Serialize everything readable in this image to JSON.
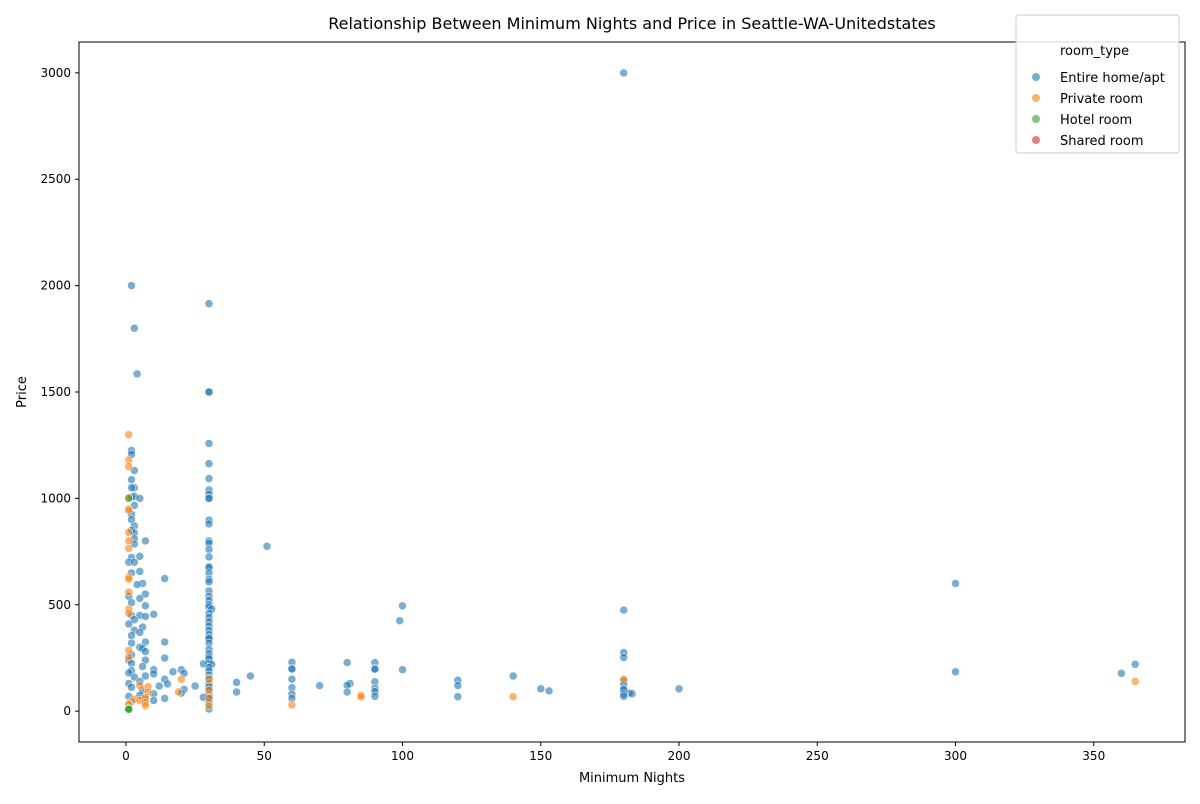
{
  "chart_data": {
    "type": "scatter",
    "title": "Relationship Between Minimum Nights and Price in Seattle-WA-Unitedstates",
    "xlabel": "Minimum Nights",
    "ylabel": "Price",
    "xlim": [
      -17,
      383
    ],
    "ylim": [
      -145,
      3145
    ],
    "x_ticks": [
      0,
      50,
      100,
      150,
      200,
      250,
      300,
      350
    ],
    "y_ticks": [
      0,
      500,
      1000,
      1500,
      2000,
      2500,
      3000
    ],
    "grid": false,
    "legend": {
      "title": "room_type",
      "placement": "top-right",
      "entries": [
        "Entire home/apt",
        "Private room",
        "Hotel room",
        "Shared room"
      ]
    },
    "colors": {
      "Entire home/apt": "#1f77b4",
      "Private room": "#ff7f0e",
      "Hotel room": "#2ca02c",
      "Shared room": "#d62728"
    },
    "series": [
      {
        "name": "Entire home/apt",
        "points": [
          [
            180,
            3000
          ],
          [
            2,
            2000
          ],
          [
            30,
            1915
          ],
          [
            3,
            1800
          ],
          [
            4,
            1585
          ],
          [
            30,
            1500
          ],
          [
            30,
            1500
          ],
          [
            30,
            1258
          ],
          [
            2,
            1225
          ],
          [
            2,
            1207
          ],
          [
            30,
            1163
          ],
          [
            3,
            1131
          ],
          [
            2,
            1088
          ],
          [
            30,
            1093
          ],
          [
            3,
            1050
          ],
          [
            2,
            1050
          ],
          [
            30,
            1040
          ],
          [
            30,
            1020
          ],
          [
            2,
            1005
          ],
          [
            3,
            1010
          ],
          [
            5,
            1000
          ],
          [
            30,
            1000
          ],
          [
            30,
            1000
          ],
          [
            3,
            967
          ],
          [
            2,
            925
          ],
          [
            2,
            900
          ],
          [
            30,
            898
          ],
          [
            30,
            880
          ],
          [
            3,
            870
          ],
          [
            2,
            850
          ],
          [
            3,
            838
          ],
          [
            3,
            810
          ],
          [
            7,
            800
          ],
          [
            30,
            800
          ],
          [
            30,
            790
          ],
          [
            3,
            785
          ],
          [
            51,
            775
          ],
          [
            30,
            760
          ],
          [
            5,
            728
          ],
          [
            30,
            725
          ],
          [
            2,
            722
          ],
          [
            1,
            700
          ],
          [
            3,
            700
          ],
          [
            30,
            680
          ],
          [
            30,
            675
          ],
          [
            5,
            657
          ],
          [
            30,
            650
          ],
          [
            2,
            650
          ],
          [
            14,
            623
          ],
          [
            30,
            620
          ],
          [
            30,
            608
          ],
          [
            6,
            600
          ],
          [
            300,
            600
          ],
          [
            4,
            595
          ],
          [
            30,
            565
          ],
          [
            7,
            550
          ],
          [
            30,
            540
          ],
          [
            1,
            540
          ],
          [
            5,
            530
          ],
          [
            30,
            520
          ],
          [
            2,
            510
          ],
          [
            30,
            500
          ],
          [
            7,
            495
          ],
          [
            100,
            495
          ],
          [
            30,
            490
          ],
          [
            31,
            480
          ],
          [
            180,
            475
          ],
          [
            30,
            460
          ],
          [
            10,
            455
          ],
          [
            5,
            450
          ],
          [
            2,
            450
          ],
          [
            30,
            440
          ],
          [
            7,
            445
          ],
          [
            3,
            430
          ],
          [
            99,
            425
          ],
          [
            30,
            420
          ],
          [
            1,
            410
          ],
          [
            30,
            400
          ],
          [
            6,
            395
          ],
          [
            30,
            380
          ],
          [
            3,
            380
          ],
          [
            5,
            370
          ],
          [
            30,
            360
          ],
          [
            2,
            355
          ],
          [
            30,
            345
          ],
          [
            30,
            340
          ],
          [
            14,
            325
          ],
          [
            7,
            325
          ],
          [
            30,
            320
          ],
          [
            2,
            320
          ],
          [
            5,
            300
          ],
          [
            6,
            295
          ],
          [
            30,
            290
          ],
          [
            7,
            280
          ],
          [
            180,
            275
          ],
          [
            30,
            270
          ],
          [
            2,
            265
          ],
          [
            30,
            255
          ],
          [
            180,
            252
          ],
          [
            14,
            250
          ],
          [
            30,
            245
          ],
          [
            1,
            240
          ],
          [
            7,
            240
          ],
          [
            60,
            230
          ],
          [
            80,
            228
          ],
          [
            90,
            228
          ],
          [
            30,
            225
          ],
          [
            2,
            225
          ],
          [
            28,
            222
          ],
          [
            31,
            220
          ],
          [
            365,
            220
          ],
          [
            6,
            210
          ],
          [
            30,
            205
          ],
          [
            60,
            200
          ],
          [
            90,
            200
          ],
          [
            60,
            198
          ],
          [
            90,
            197
          ],
          [
            100,
            195
          ],
          [
            20,
            195
          ],
          [
            10,
            195
          ],
          [
            2,
            190
          ],
          [
            30,
            190
          ],
          [
            17,
            185
          ],
          [
            300,
            185
          ],
          [
            1,
            180
          ],
          [
            21,
            178
          ],
          [
            360,
            178
          ],
          [
            10,
            175
          ],
          [
            30,
            170
          ],
          [
            45,
            165
          ],
          [
            140,
            165
          ],
          [
            7,
            165
          ],
          [
            3,
            160
          ],
          [
            30,
            155
          ],
          [
            60,
            150
          ],
          [
            14,
            150
          ],
          [
            120,
            145
          ],
          [
            180,
            142
          ],
          [
            5,
            140
          ],
          [
            40,
            135
          ],
          [
            90,
            138
          ],
          [
            81,
            130
          ],
          [
            30,
            130
          ],
          [
            1,
            130
          ],
          [
            15,
            128
          ],
          [
            70,
            120
          ],
          [
            80,
            122
          ],
          [
            120,
            120
          ],
          [
            180,
            125
          ],
          [
            25,
            118
          ],
          [
            12,
            118
          ],
          [
            30,
            115
          ],
          [
            2,
            112
          ],
          [
            60,
            110
          ],
          [
            90,
            108
          ],
          [
            150,
            105
          ],
          [
            200,
            105
          ],
          [
            180,
            105
          ],
          [
            21,
            102
          ],
          [
            30,
            100
          ],
          [
            180,
            100
          ],
          [
            6,
            98
          ],
          [
            153,
            95
          ],
          [
            40,
            90
          ],
          [
            80,
            90
          ],
          [
            90,
            92
          ],
          [
            182,
            85
          ],
          [
            183,
            82
          ],
          [
            10,
            82
          ],
          [
            30,
            80
          ],
          [
            60,
            80
          ],
          [
            180,
            80
          ],
          [
            20,
            85
          ],
          [
            5,
            75
          ],
          [
            1,
            70
          ],
          [
            30,
            72
          ],
          [
            90,
            70
          ],
          [
            120,
            68
          ],
          [
            180,
            70
          ],
          [
            30,
            62
          ],
          [
            14,
            60
          ],
          [
            60,
            60
          ],
          [
            7,
            55
          ],
          [
            28,
            65
          ],
          [
            10,
            50
          ],
          [
            2,
            45
          ],
          [
            30,
            40
          ],
          [
            30,
            10
          ]
        ]
      },
      {
        "name": "Private room",
        "points": [
          [
            1,
            1300
          ],
          [
            1,
            1180
          ],
          [
            1,
            1150
          ],
          [
            1,
            1005
          ],
          [
            1,
            950
          ],
          [
            1,
            945
          ],
          [
            1,
            840
          ],
          [
            1,
            800
          ],
          [
            1,
            765
          ],
          [
            1,
            630
          ],
          [
            1,
            620
          ],
          [
            1,
            560
          ],
          [
            1,
            480
          ],
          [
            1,
            460
          ],
          [
            1,
            285
          ],
          [
            1,
            255
          ],
          [
            30,
            150
          ],
          [
            180,
            150
          ],
          [
            20,
            150
          ],
          [
            365,
            140
          ],
          [
            5,
            120
          ],
          [
            8,
            115
          ],
          [
            30,
            100
          ],
          [
            19,
            90
          ],
          [
            8,
            90
          ],
          [
            85,
            75
          ],
          [
            85,
            68
          ],
          [
            140,
            68
          ],
          [
            7,
            65
          ],
          [
            30,
            60
          ],
          [
            3,
            55
          ],
          [
            5,
            50
          ],
          [
            7,
            40
          ],
          [
            1,
            35
          ],
          [
            1,
            30
          ],
          [
            60,
            30
          ],
          [
            7,
            25
          ],
          [
            30,
            25
          ]
        ]
      },
      {
        "name": "Hotel room",
        "points": [
          [
            1,
            1000
          ],
          [
            1,
            15
          ],
          [
            1,
            10
          ],
          [
            1,
            8
          ]
        ]
      },
      {
        "name": "Shared room",
        "points": []
      }
    ]
  }
}
